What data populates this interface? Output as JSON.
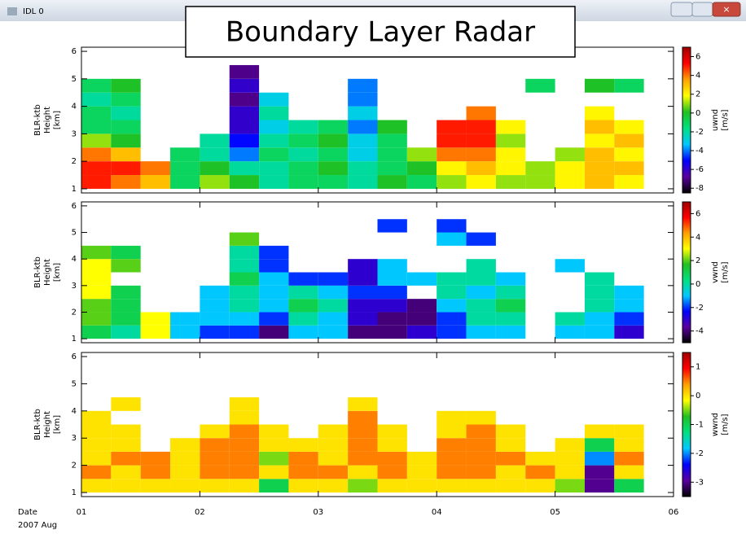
{
  "window": {
    "title": "IDL 0"
  },
  "overlay_title": "Boundary Layer Radar",
  "x_label": [
    "Date",
    "2007 Aug"
  ],
  "colormap": [
    "#000000",
    "#5a00a0",
    "#0000ff",
    "#00c8ff",
    "#00e080",
    "#20c020",
    "#ffff00",
    "#ffa000",
    "#ff0000",
    "#a00000"
  ],
  "chart_data": [
    {
      "type": "heatmap",
      "ylabel": [
        "BLR-ktb",
        "Height",
        "[km]"
      ],
      "colorbar_label": [
        "uwnd",
        "[m/s]"
      ],
      "xlim": [
        1,
        6
      ],
      "ylim": [
        0.85,
        6.15
      ],
      "yticks": [
        1,
        2,
        3,
        4,
        5,
        6
      ],
      "zlim": [
        -8.5,
        7
      ],
      "zticks": [
        -8,
        -6,
        -4,
        -2,
        0,
        2,
        4,
        6
      ],
      "x": [
        1.125,
        1.375,
        1.625,
        1.875,
        2.125,
        2.375,
        2.625,
        2.875,
        3.125,
        3.375,
        3.625,
        3.875,
        4.125,
        4.375,
        4.625,
        4.875,
        5.125,
        5.375,
        5.625
      ],
      "y": [
        1.25,
        1.75,
        2.25,
        2.75,
        3.25,
        3.75,
        4.25,
        4.75,
        5.25
      ],
      "z": [
        [
          5,
          4,
          3,
          -1,
          1,
          0,
          -2,
          -1,
          -1,
          -2,
          0,
          -1,
          1,
          2,
          1,
          1,
          2,
          3,
          2
        ],
        [
          5,
          5,
          4,
          -1,
          0,
          -2,
          -2,
          -1,
          0,
          -2,
          -1,
          0,
          2,
          3,
          2,
          1,
          2,
          3,
          3
        ],
        [
          4,
          3,
          null,
          -1,
          -2,
          -4,
          -1,
          -2,
          -1,
          -3,
          -1,
          1,
          4,
          4,
          2,
          null,
          1,
          3,
          2
        ],
        [
          1,
          0,
          null,
          null,
          -2,
          -5,
          -2,
          -1,
          0,
          -3,
          -1,
          null,
          5,
          5,
          1,
          null,
          null,
          2,
          3
        ],
        [
          -1,
          -1,
          null,
          null,
          null,
          -6,
          -3,
          -2,
          -1,
          -4,
          0,
          null,
          5,
          5,
          2,
          null,
          null,
          3,
          2
        ],
        [
          -1,
          -2,
          null,
          null,
          null,
          -6,
          -2,
          null,
          null,
          -3,
          null,
          null,
          null,
          4,
          null,
          null,
          null,
          2,
          null
        ],
        [
          -2,
          -1,
          null,
          null,
          null,
          -7,
          -3,
          null,
          null,
          -4,
          null,
          null,
          null,
          null,
          null,
          null,
          null,
          null,
          null
        ],
        [
          -1,
          0,
          null,
          null,
          null,
          -6,
          null,
          null,
          null,
          -4,
          null,
          null,
          null,
          null,
          null,
          -1,
          null,
          0,
          -1
        ],
        [
          null,
          null,
          null,
          null,
          null,
          -7,
          null,
          null,
          null,
          null,
          null,
          null,
          null,
          null,
          null,
          null,
          null,
          null,
          null
        ]
      ]
    },
    {
      "type": "heatmap",
      "ylabel": [
        "BLR-ktb",
        "Height",
        "[km]"
      ],
      "colorbar_label": [
        "vwnd",
        "[m/s]"
      ],
      "xlim": [
        1,
        6
      ],
      "ylim": [
        0.85,
        6.15
      ],
      "yticks": [
        1,
        2,
        3,
        4,
        5,
        6
      ],
      "zlim": [
        -5,
        7
      ],
      "zticks": [
        -4,
        -2,
        0,
        2,
        4,
        6
      ],
      "x": [
        1.125,
        1.375,
        1.625,
        1.875,
        2.125,
        2.375,
        2.625,
        2.875,
        3.125,
        3.375,
        3.625,
        3.875,
        4.125,
        4.375,
        4.625,
        4.875,
        5.125,
        5.375,
        5.625
      ],
      "y": [
        1.25,
        1.75,
        2.25,
        2.75,
        3.25,
        3.75,
        4.25,
        4.75,
        5.25
      ],
      "z": [
        [
          1,
          0,
          3,
          -1,
          -2,
          -2,
          -4,
          -1,
          -1,
          -4,
          -4,
          -3,
          -2,
          -1,
          -1,
          null,
          -1,
          -1,
          -3
        ],
        [
          2,
          1,
          3,
          -1,
          -1,
          -1,
          -2,
          0,
          -1,
          -3,
          -4,
          -4,
          -2,
          0,
          0,
          null,
          0,
          -1,
          -2
        ],
        [
          2,
          1,
          null,
          null,
          -1,
          0,
          -1,
          1,
          0,
          -3,
          -3,
          -4,
          -1,
          0,
          1,
          null,
          null,
          0,
          -1
        ],
        [
          3,
          1,
          null,
          null,
          -1,
          0,
          -1,
          0,
          -1,
          -2,
          -2,
          null,
          0,
          -1,
          0,
          null,
          null,
          0,
          -1
        ],
        [
          3,
          null,
          null,
          null,
          null,
          1,
          -1,
          -2,
          -2,
          -3,
          -1,
          -1,
          0,
          0,
          -1,
          null,
          null,
          0,
          null
        ],
        [
          3,
          2,
          null,
          null,
          null,
          0,
          -2,
          null,
          null,
          -3,
          -1,
          null,
          null,
          0,
          null,
          null,
          -1,
          null,
          null
        ],
        [
          2,
          1,
          null,
          null,
          null,
          0,
          -2,
          null,
          null,
          null,
          null,
          null,
          null,
          null,
          null,
          null,
          null,
          null,
          null
        ],
        [
          null,
          null,
          null,
          null,
          null,
          2,
          null,
          null,
          null,
          null,
          null,
          null,
          -1,
          -2,
          null,
          null,
          null,
          null,
          null
        ],
        [
          null,
          null,
          null,
          null,
          null,
          null,
          null,
          null,
          null,
          null,
          -2,
          null,
          -2,
          null,
          null,
          null,
          null,
          null,
          null
        ]
      ]
    },
    {
      "type": "heatmap",
      "ylabel": [
        "BLR-ktb",
        "Height",
        "[km]"
      ],
      "colorbar_label": [
        "wwnd",
        "[m/s]"
      ],
      "xlim": [
        1,
        6
      ],
      "ylim": [
        0.85,
        6.15
      ],
      "yticks": [
        1,
        2,
        3,
        4,
        5,
        6
      ],
      "xticks": [
        {
          "value": 1,
          "label": "01"
        },
        {
          "value": 2,
          "label": "02"
        },
        {
          "value": 3,
          "label": "03"
        },
        {
          "value": 4,
          "label": "04"
        },
        {
          "value": 5,
          "label": "05"
        },
        {
          "value": 6,
          "label": "06"
        }
      ],
      "zlim": [
        -3.5,
        1.5
      ],
      "zticks": [
        -3,
        -2,
        -1,
        0,
        1
      ],
      "x": [
        1.125,
        1.375,
        1.625,
        1.875,
        2.125,
        2.375,
        2.625,
        2.875,
        3.125,
        3.375,
        3.625,
        3.875,
        4.125,
        4.375,
        4.625,
        4.875,
        5.125,
        5.375,
        5.625
      ],
      "y": [
        1.25,
        1.75,
        2.25,
        2.75,
        3.25,
        3.75,
        4.25,
        4.75,
        5.25
      ],
      "z": [
        [
          0,
          0,
          0,
          0,
          0,
          0,
          -1,
          0,
          0,
          -0.5,
          0,
          0,
          0,
          0,
          0,
          0,
          -0.5,
          -3,
          -1
        ],
        [
          0.5,
          0,
          0.5,
          0,
          0.5,
          0.5,
          0,
          0.5,
          0.5,
          0,
          0.5,
          0,
          0.5,
          0.5,
          0,
          0.5,
          0,
          -3,
          0
        ],
        [
          0,
          0.5,
          0.5,
          0,
          0.5,
          0.5,
          -0.5,
          0.5,
          0,
          0.5,
          0.5,
          0,
          0.5,
          0.5,
          0.5,
          0,
          0,
          -2,
          0.5
        ],
        [
          0,
          0,
          null,
          0,
          0.5,
          0.5,
          0,
          0,
          0,
          0.5,
          0,
          null,
          0.5,
          0.5,
          0,
          null,
          0,
          -1,
          0
        ],
        [
          0,
          0,
          null,
          null,
          0,
          0.5,
          0,
          null,
          0,
          0.5,
          0,
          null,
          0,
          0.5,
          0,
          null,
          null,
          0,
          0
        ],
        [
          0,
          null,
          null,
          null,
          null,
          0,
          null,
          null,
          null,
          0.5,
          null,
          null,
          0,
          0,
          null,
          null,
          null,
          null,
          null
        ],
        [
          null,
          0,
          null,
          null,
          null,
          0,
          null,
          null,
          null,
          0,
          null,
          null,
          null,
          null,
          null,
          null,
          null,
          null,
          null
        ],
        [
          null,
          null,
          null,
          null,
          null,
          null,
          null,
          null,
          null,
          null,
          null,
          null,
          null,
          null,
          null,
          null,
          null,
          null,
          null
        ],
        [
          null,
          null,
          null,
          null,
          null,
          null,
          null,
          null,
          null,
          null,
          null,
          null,
          null,
          null,
          null,
          null,
          null,
          null,
          null
        ]
      ]
    }
  ]
}
